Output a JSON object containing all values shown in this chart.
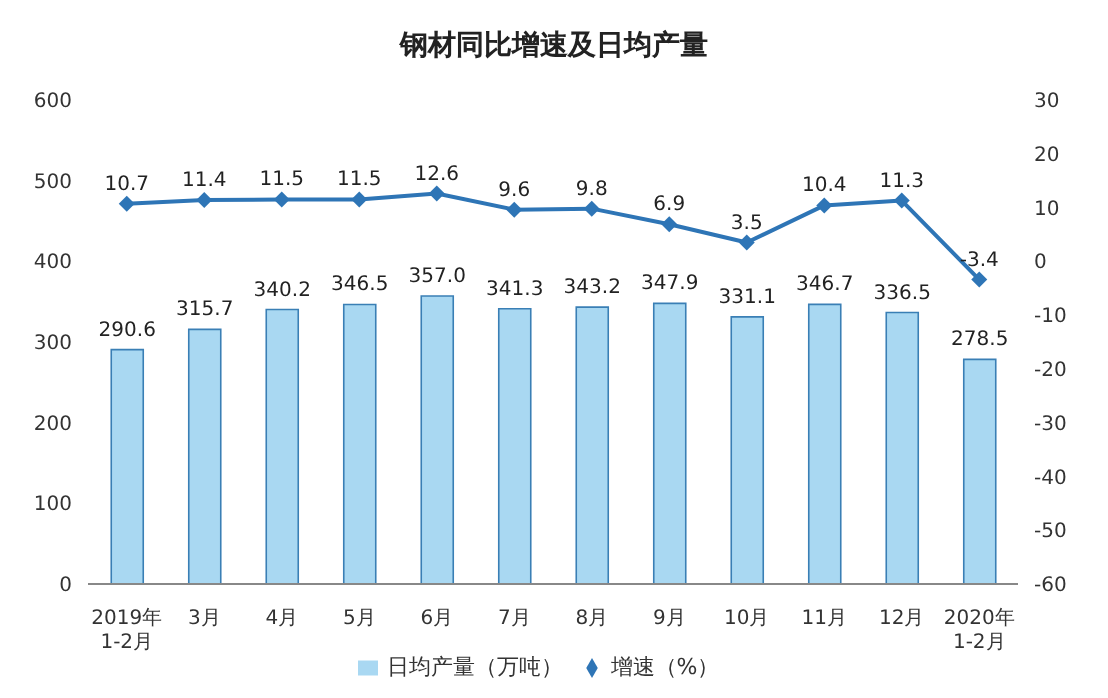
{
  "chart_data": {
    "type": "bar",
    "title": "钢材同比增速及日均产量",
    "categories": [
      "2019年\n1-2月",
      "3月",
      "4月",
      "5月",
      "6月",
      "7月",
      "8月",
      "9月",
      "10月",
      "11月",
      "12月",
      "2020年\n1-2月"
    ],
    "series": [
      {
        "name": "日均产量（万吨）",
        "color": "#a9d8f2",
        "values": [
          290.6,
          315.7,
          340.2,
          346.5,
          357.0,
          341.3,
          343.2,
          347.9,
          331.1,
          346.7,
          336.5,
          278.5
        ],
        "value_labels": [
          "290.6",
          "315.7",
          "340.2",
          "346.5",
          "357.0",
          "341.3",
          "343.2",
          "347.9",
          "331.1",
          "346.7",
          "336.5",
          "278.5"
        ]
      },
      {
        "name": "增速（%）",
        "type": "line",
        "axis": "y2",
        "color": "#2e75b6",
        "values": [
          10.7,
          11.4,
          11.5,
          11.5,
          12.6,
          9.6,
          9.8,
          6.9,
          3.5,
          10.4,
          11.3,
          -3.4
        ]
      }
    ],
    "ylim": [
      0,
      600
    ],
    "yticks": [
      0,
      100,
      200,
      300,
      400,
      500,
      600
    ],
    "y2lim": [
      -60,
      30
    ],
    "y2ticks": [
      -60,
      -50,
      -40,
      -30,
      -20,
      -10,
      0,
      10,
      20,
      30
    ],
    "data_labels": true,
    "legend": "bottom",
    "grid": false,
    "marker": "diamond",
    "line_style": "solid"
  }
}
